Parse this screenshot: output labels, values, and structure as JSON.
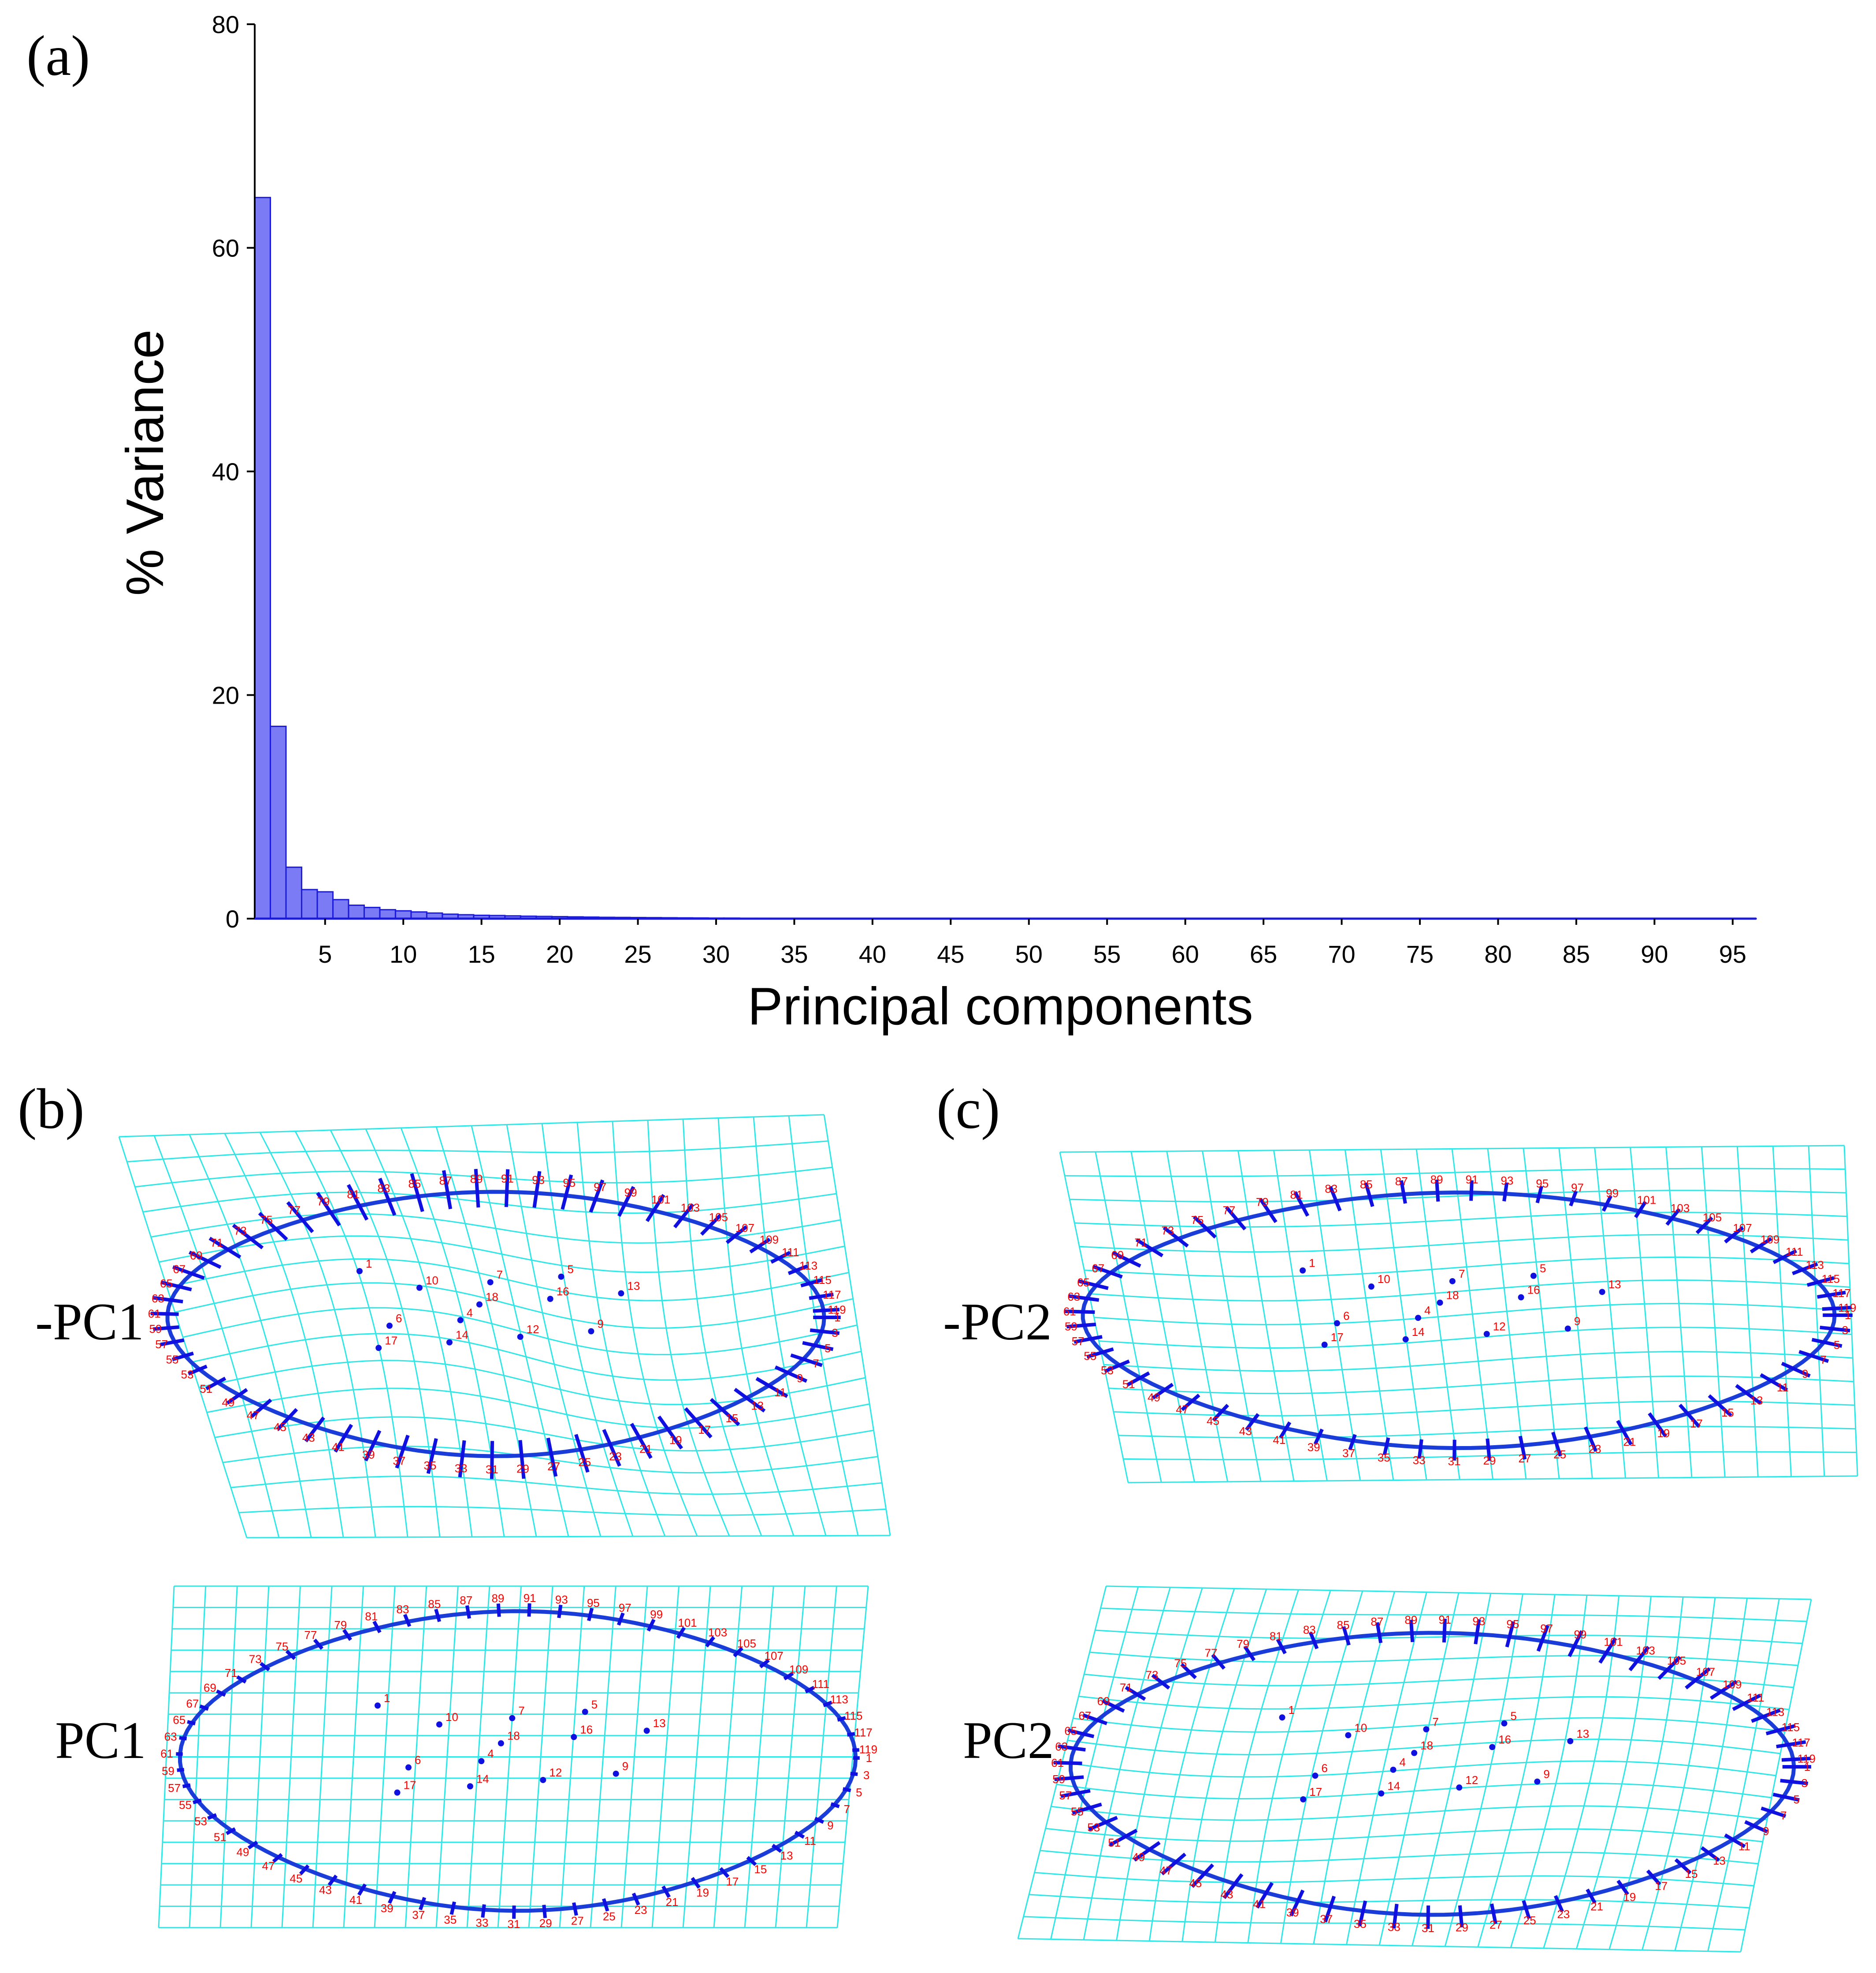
{
  "chart_data": {
    "type": "bar",
    "panel_label": "(a)",
    "xlabel": "Principal components",
    "ylabel": "% Variance",
    "ylim": [
      0,
      80
    ],
    "yticks": [
      0,
      20,
      40,
      60,
      80
    ],
    "xticks": [
      5,
      10,
      15,
      20,
      25,
      30,
      35,
      40,
      45,
      50,
      55,
      60,
      65,
      70,
      75,
      80,
      85,
      90,
      95
    ],
    "xlim": [
      0,
      96
    ],
    "bar_color": "#7b7bf5",
    "bar_edge": "#1c1cd8",
    "values": [
      64.5,
      17.2,
      4.6,
      2.6,
      2.4,
      1.7,
      1.2,
      1.0,
      0.8,
      0.7,
      0.6,
      0.5,
      0.4,
      0.35,
      0.3,
      0.28,
      0.25,
      0.22,
      0.2,
      0.18,
      0.16,
      0.14,
      0.12,
      0.11,
      0.1,
      0.09,
      0.08,
      0.07,
      0.06,
      0.05,
      0.05,
      0.04,
      0.04,
      0.03,
      0.03,
      0.03,
      0.02,
      0.02,
      0.02,
      0.02,
      0.02,
      0.01,
      0.01,
      0.01,
      0.01,
      0.01,
      0.01,
      0.01,
      0.01,
      0.01,
      0.01,
      0.01,
      0.01,
      0.01,
      0.01,
      0.01,
      0.01,
      0.01,
      0.01,
      0.01,
      0.01,
      0.01,
      0.01,
      0.01,
      0.01,
      0.01,
      0.01,
      0.01,
      0.01,
      0.01,
      0.01,
      0.01,
      0.01,
      0.01,
      0.01,
      0.01,
      0.01,
      0.01,
      0.01,
      0.01,
      0.01,
      0.01,
      0.01,
      0.01,
      0.01,
      0.01,
      0.01,
      0.01,
      0.01,
      0.01,
      0.01,
      0.01,
      0.01,
      0.01,
      0.01,
      0.01
    ]
  },
  "deformation_panels": {
    "panel_b_label": "(b)",
    "panel_c_label": "(c)",
    "rows": [
      {
        "label": "-PC1",
        "panel": "b",
        "variant": "neg1"
      },
      {
        "label": "PC1",
        "panel": "b",
        "variant": "pos1"
      },
      {
        "label": "-PC2",
        "panel": "c",
        "variant": "neg2"
      },
      {
        "label": "PC2",
        "panel": "c",
        "variant": "pos2"
      }
    ],
    "landmark_count": 119,
    "inner_landmarks": [
      "1",
      "4",
      "5",
      "6",
      "7",
      "9",
      "10",
      "12",
      "13",
      "14",
      "16",
      "17",
      "18"
    ],
    "grid_color": "#33e6e6",
    "vector_color": "#1010e0",
    "label_color": "#ff0000"
  }
}
